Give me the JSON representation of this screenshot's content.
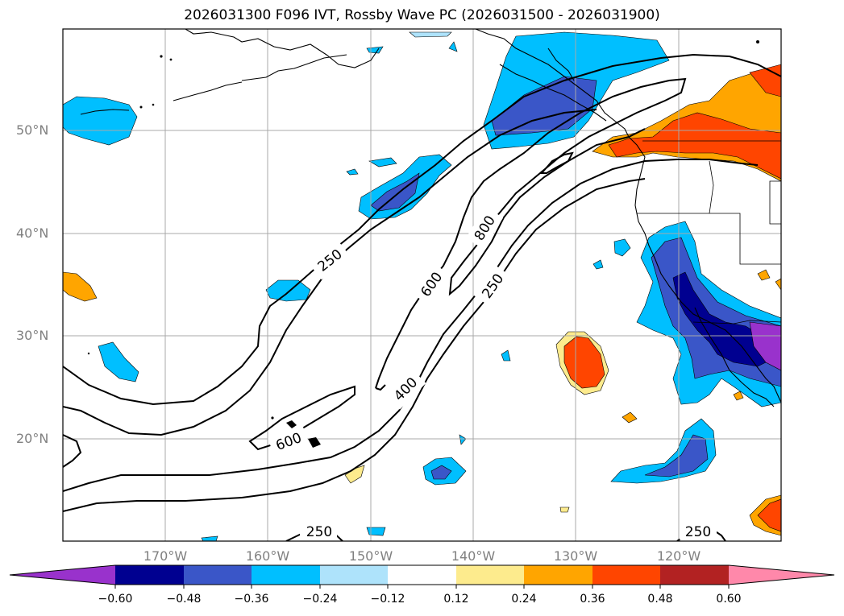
{
  "title": "2026031300 F096 IVT, Rossby Wave PC (2026031500 - 2026031900)",
  "map": {
    "lat_labels": [
      "50°N",
      "40°N",
      "30°N",
      "20°N"
    ],
    "lon_labels": [
      "170°W",
      "160°W",
      "150°W",
      "140°W",
      "130°W",
      "120°W"
    ],
    "contour_labels": [
      "250",
      "800",
      "600",
      "250",
      "400",
      "600",
      "250",
      "250"
    ]
  },
  "colorbar": {
    "labels": [
      "−0.60",
      "−0.48",
      "−0.36",
      "−0.24",
      "−0.12",
      "0.12",
      "0.24",
      "0.36",
      "0.48",
      "0.60"
    ],
    "colors": {
      "under": "#9932cc",
      "bins": [
        "#000090",
        "#3a56c8",
        "#00bfff",
        "#aee3fb",
        "#ffffff",
        "#fdeb8d",
        "#ffa500",
        "#ff4500",
        "#b22222"
      ],
      "over": "#ff88aa"
    }
  }
}
